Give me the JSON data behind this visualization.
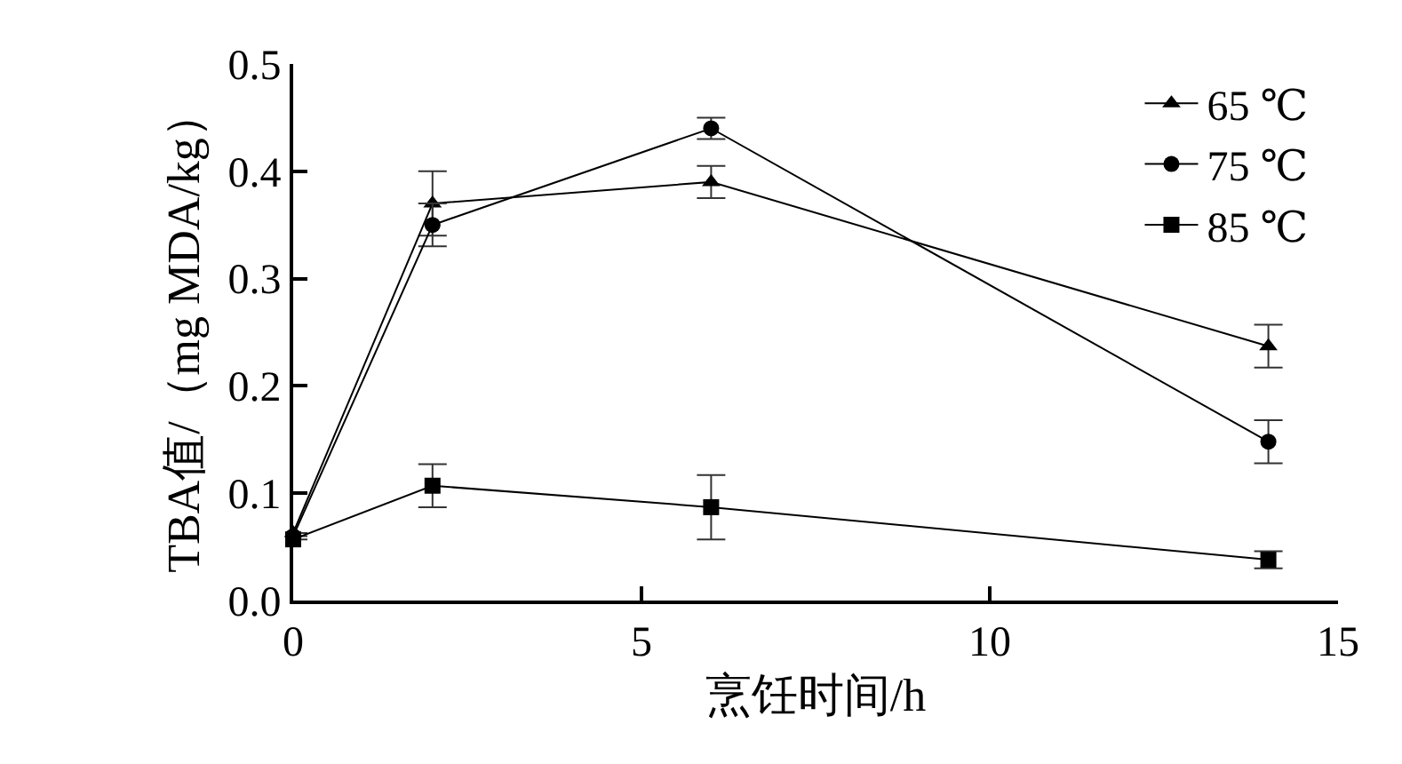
{
  "chart_data": {
    "type": "line",
    "xlabel": "烹饪时间/h",
    "ylabel": "TBA值/（mg MDA/kg）",
    "x": [
      0,
      2,
      6,
      14
    ],
    "series": [
      {
        "name": "65 ℃",
        "color": "#000000",
        "marker": "triangle",
        "values": [
          0.063,
          0.37,
          0.39,
          0.237
        ],
        "errors": [
          null,
          0.03,
          0.015,
          0.02
        ]
      },
      {
        "name": "75 ℃",
        "color": "#000000",
        "marker": "circle",
        "values": [
          0.06,
          0.35,
          0.44,
          0.148
        ],
        "errors": [
          null,
          0.02,
          0.01,
          0.02
        ]
      },
      {
        "name": "85 ℃",
        "color": "#000000",
        "marker": "square",
        "values": [
          0.057,
          0.107,
          0.087,
          0.038
        ],
        "errors": [
          null,
          0.02,
          0.03,
          0.008
        ]
      }
    ],
    "xlim": [
      0,
      15
    ],
    "xticks": [
      0,
      5,
      10,
      15
    ],
    "ylim": [
      0,
      0.5
    ],
    "yticks": [
      {
        "value": 0,
        "label": "0.0"
      },
      0.1,
      0.2,
      0.3,
      0.4,
      0.5
    ],
    "legend": "top right",
    "line_style": "solid"
  }
}
